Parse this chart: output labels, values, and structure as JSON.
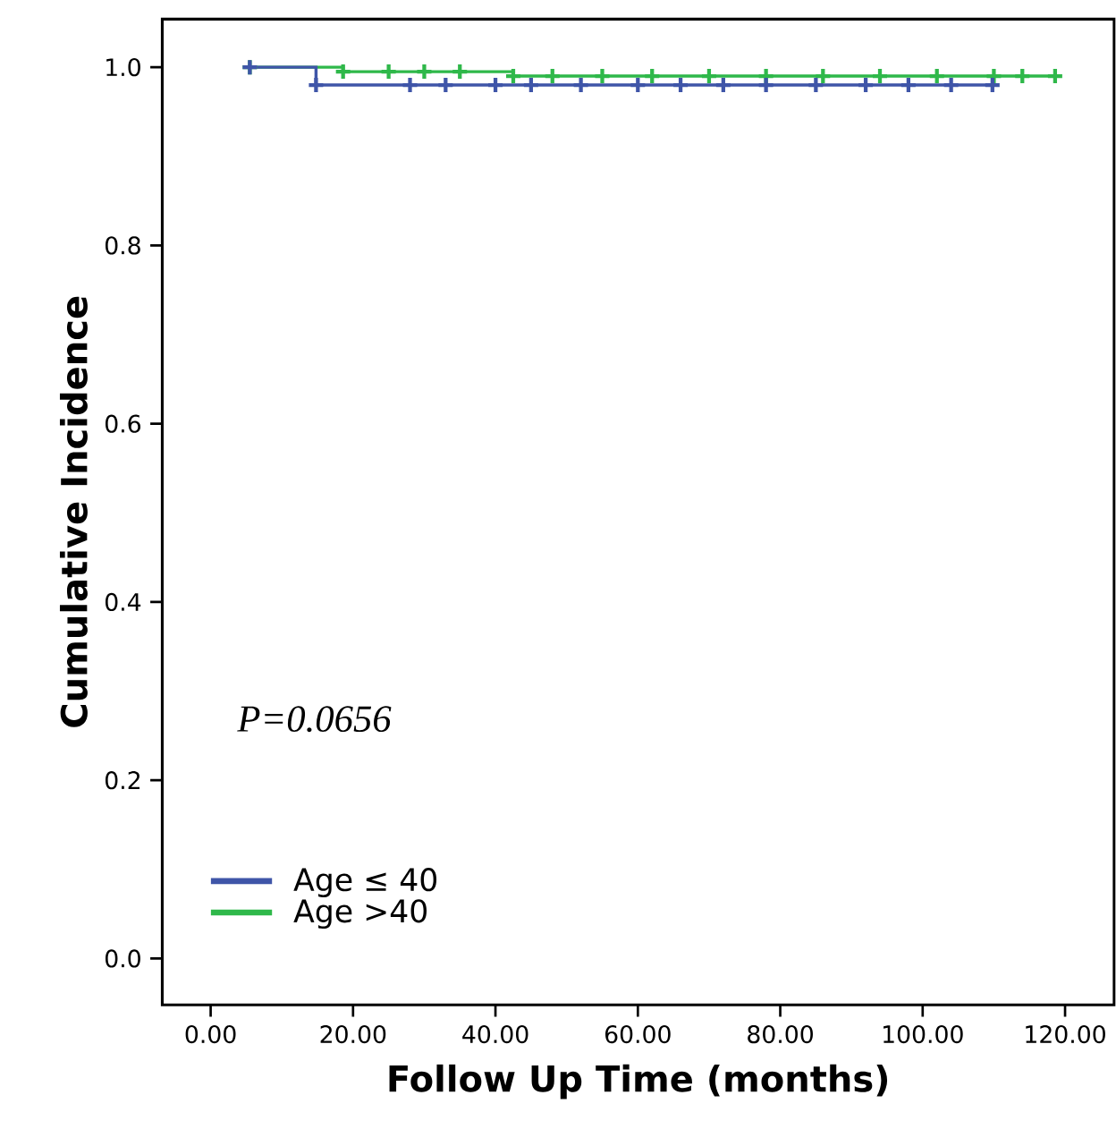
{
  "chart_data": {
    "type": "step",
    "xlabel": "Follow Up Time (months)",
    "ylabel": "Cumulative Incidence",
    "xlim": [
      -6.8,
      126.9
    ],
    "ylim": [
      -0.052,
      1.054
    ],
    "xticks": [
      {
        "value": 0,
        "label": "0.00"
      },
      {
        "value": 20,
        "label": "20.00"
      },
      {
        "value": 40,
        "label": "40.00"
      },
      {
        "value": 60,
        "label": "60.00"
      },
      {
        "value": 80,
        "label": "80.00"
      },
      {
        "value": 100,
        "label": "100.00"
      },
      {
        "value": 120,
        "label": "120.00"
      }
    ],
    "yticks": [
      {
        "value": 0,
        "label": "0.0"
      },
      {
        "value": 0.2,
        "label": "0.2"
      },
      {
        "value": 0.4,
        "label": "0.4"
      },
      {
        "value": 0.6,
        "label": "0.6"
      },
      {
        "value": 0.8,
        "label": "0.8"
      },
      {
        "value": 1.0,
        "label": "1.0"
      }
    ],
    "series": [
      {
        "name": "Age ≤ 40",
        "color": "#3f55a8",
        "x": [
          5.5,
          14.8,
          28,
          33,
          40,
          45,
          52,
          60,
          66,
          72,
          78,
          85,
          92,
          98,
          104,
          109.8
        ],
        "values": [
          1.0,
          0.98,
          0.98,
          0.98,
          0.98,
          0.98,
          0.98,
          0.98,
          0.98,
          0.98,
          0.98,
          0.98,
          0.98,
          0.98,
          0.98,
          0.98
        ]
      },
      {
        "name": "Age >40",
        "color": "#2fb84a",
        "x": [
          5.5,
          18.6,
          25,
          30,
          35,
          42.5,
          48,
          55,
          62,
          70,
          78,
          86,
          94,
          102,
          110,
          114,
          118.6
        ],
        "values": [
          1.0,
          0.995,
          0.995,
          0.995,
          0.995,
          0.99,
          0.99,
          0.99,
          0.99,
          0.99,
          0.99,
          0.99,
          0.99,
          0.99,
          0.99,
          0.99,
          0.99
        ]
      }
    ],
    "marker": "cross",
    "legend": "bottom left",
    "grid": false,
    "annotations": [
      "P=0.0656"
    ]
  }
}
